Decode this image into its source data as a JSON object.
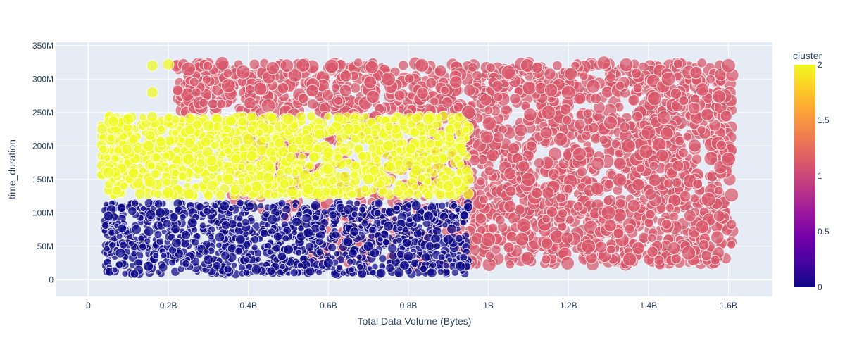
{
  "chart_data": {
    "type": "scatter",
    "xlabel": "Total Data Volume (Bytes)",
    "ylabel": "time_duration",
    "xlim": [
      -0.08,
      1.71
    ],
    "ylim": [
      -25,
      355
    ],
    "x_units": "billion bytes",
    "y_units": "million",
    "x_ticks": [
      0,
      0.2,
      0.4,
      0.6,
      0.8,
      1.0,
      1.2,
      1.4,
      1.6
    ],
    "x_tick_labels": [
      "0",
      "0.2B",
      "0.4B",
      "0.6B",
      "0.8B",
      "1B",
      "1.2B",
      "1.4B",
      "1.6B"
    ],
    "y_ticks": [
      0,
      50,
      100,
      150,
      200,
      250,
      300,
      350
    ],
    "y_tick_labels": [
      "0",
      "50M",
      "100M",
      "150M",
      "200M",
      "250M",
      "300M",
      "350M"
    ],
    "grid": true,
    "colorbar": {
      "title": "cluster",
      "range": [
        0,
        2
      ],
      "ticks": [
        0,
        0.5,
        1,
        1.5,
        2
      ],
      "tick_labels": [
        "0",
        "0.5",
        "1",
        "1.5",
        "2"
      ],
      "colorscale": [
        "#0d0887",
        "#46039f",
        "#7201a8",
        "#9c179e",
        "#bd3786",
        "#d8576b",
        "#ed7953",
        "#fb9f3a",
        "#fdca26",
        "#f0f921"
      ]
    },
    "series": [
      {
        "cluster": 0,
        "color": "#0d0887",
        "points": [
          [
            0.05,
            95
          ],
          [
            0.08,
            40
          ],
          [
            0.12,
            75
          ],
          [
            0.15,
            20
          ],
          [
            0.18,
            100
          ],
          [
            0.22,
            55
          ],
          [
            0.26,
            85
          ],
          [
            0.3,
            30
          ],
          [
            0.34,
            110
          ],
          [
            0.38,
            60
          ],
          [
            0.42,
            15
          ],
          [
            0.46,
            90
          ],
          [
            0.5,
            45
          ],
          [
            0.55,
            70
          ],
          [
            0.6,
            25
          ],
          [
            0.65,
            105
          ],
          [
            0.7,
            50
          ],
          [
            0.75,
            80
          ],
          [
            0.8,
            35
          ],
          [
            0.85,
            95
          ],
          [
            0.9,
            60
          ],
          [
            0.93,
            20
          ]
        ]
      },
      {
        "cluster": 1,
        "color": "#d8576b",
        "points": [
          [
            0.25,
            315
          ],
          [
            0.35,
            290
          ],
          [
            0.45,
            260
          ],
          [
            0.55,
            200
          ],
          [
            0.65,
            230
          ],
          [
            0.75,
            300
          ],
          [
            0.85,
            180
          ],
          [
            0.95,
            250
          ],
          [
            1.0,
            60
          ],
          [
            1.1,
            150
          ],
          [
            1.2,
            280
          ],
          [
            1.3,
            100
          ],
          [
            1.4,
            220
          ],
          [
            1.5,
            40
          ],
          [
            1.6,
            320
          ],
          [
            1.6,
            180
          ],
          [
            1.55,
            120
          ],
          [
            1.45,
            300
          ],
          [
            1.35,
            200
          ],
          [
            1.25,
            50
          ],
          [
            1.15,
            250
          ],
          [
            1.05,
            310
          ]
        ]
      },
      {
        "cluster": 2,
        "color": "#f0f921",
        "points": [
          [
            0.05,
            160
          ],
          [
            0.1,
            240
          ],
          [
            0.15,
            200
          ],
          [
            0.2,
            130
          ],
          [
            0.25,
            180
          ],
          [
            0.3,
            230
          ],
          [
            0.35,
            150
          ],
          [
            0.4,
            210
          ],
          [
            0.45,
            170
          ],
          [
            0.5,
            240
          ],
          [
            0.55,
            135
          ],
          [
            0.6,
            190
          ],
          [
            0.65,
            225
          ],
          [
            0.7,
            150
          ],
          [
            0.75,
            200
          ],
          [
            0.8,
            175
          ],
          [
            0.85,
            240
          ],
          [
            0.9,
            140
          ],
          [
            0.95,
            150
          ],
          [
            0.16,
            320
          ],
          [
            0.2,
            322
          ],
          [
            0.16,
            280
          ]
        ]
      }
    ]
  }
}
